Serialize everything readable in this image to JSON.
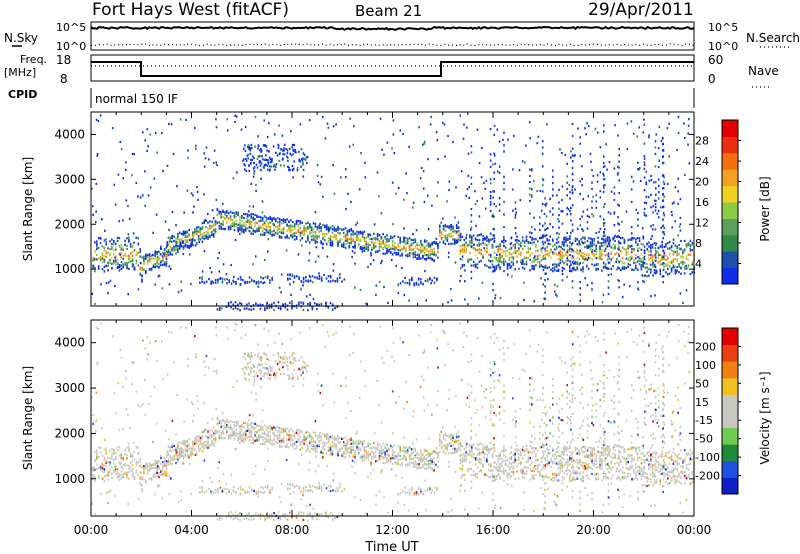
{
  "header": {
    "station": "Fort Hays West (fitACF)",
    "beam": "Beam 21",
    "date": "29/Apr/2011"
  },
  "noise_panel": {
    "left_label": "N.Sky",
    "right_label": "N.Search",
    "left_ticks": [
      "10^5",
      "10^0"
    ],
    "right_ticks": [
      "10^5",
      "10^0"
    ]
  },
  "freq_panel": {
    "left_label_line1": "Freq.",
    "left_label_line2": "[MHz]",
    "left_ticks": [
      "18",
      "8"
    ],
    "right_label": "Nave",
    "right_ticks": [
      "60",
      "0"
    ]
  },
  "cpid_panel": {
    "label": "CPID",
    "text": "normal 150 IF"
  },
  "chart_data": [
    {
      "type": "heatmap",
      "name_hint": "power",
      "ylabel": "Slant Range [km]",
      "xlabel": "",
      "y_ticks": [
        1000,
        2000,
        3000,
        4000
      ],
      "ylim": [
        180,
        4500
      ],
      "xlim_hours": [
        0,
        24
      ],
      "colorbar": {
        "label": "Power [dB]",
        "ticks": [
          4,
          8,
          12,
          16,
          20,
          24,
          28
        ],
        "colors": [
          "#0b2ee6",
          "#1f4fa8",
          "#2f8a4a",
          "#5aa05a",
          "#8ccc44",
          "#f0d020",
          "#f5a020",
          "#f27010",
          "#e83010",
          "#e00000"
        ]
      }
    },
    {
      "type": "heatmap",
      "name_hint": "velocity",
      "ylabel": "Slant Range [km]",
      "xlabel": "Time UT",
      "x_ticks": [
        "00:00",
        "04:00",
        "08:00",
        "12:00",
        "16:00",
        "20:00",
        "00:00"
      ],
      "y_ticks": [
        1000,
        2000,
        3000,
        4000
      ],
      "ylim": [
        180,
        4500
      ],
      "xlim_hours": [
        0,
        24
      ],
      "colorbar": {
        "label": "Velocity [m s⁻¹]",
        "ticks": [
          200,
          100,
          50,
          15,
          -15,
          -50,
          -100,
          -200
        ],
        "colors": [
          "#1020c8",
          "#2050e0",
          "#1e8a3a",
          "#70cc50",
          "#c8c8c0",
          "#c8c8c0",
          "#f0c020",
          "#f08010",
          "#e84010",
          "#e00000"
        ]
      }
    }
  ]
}
